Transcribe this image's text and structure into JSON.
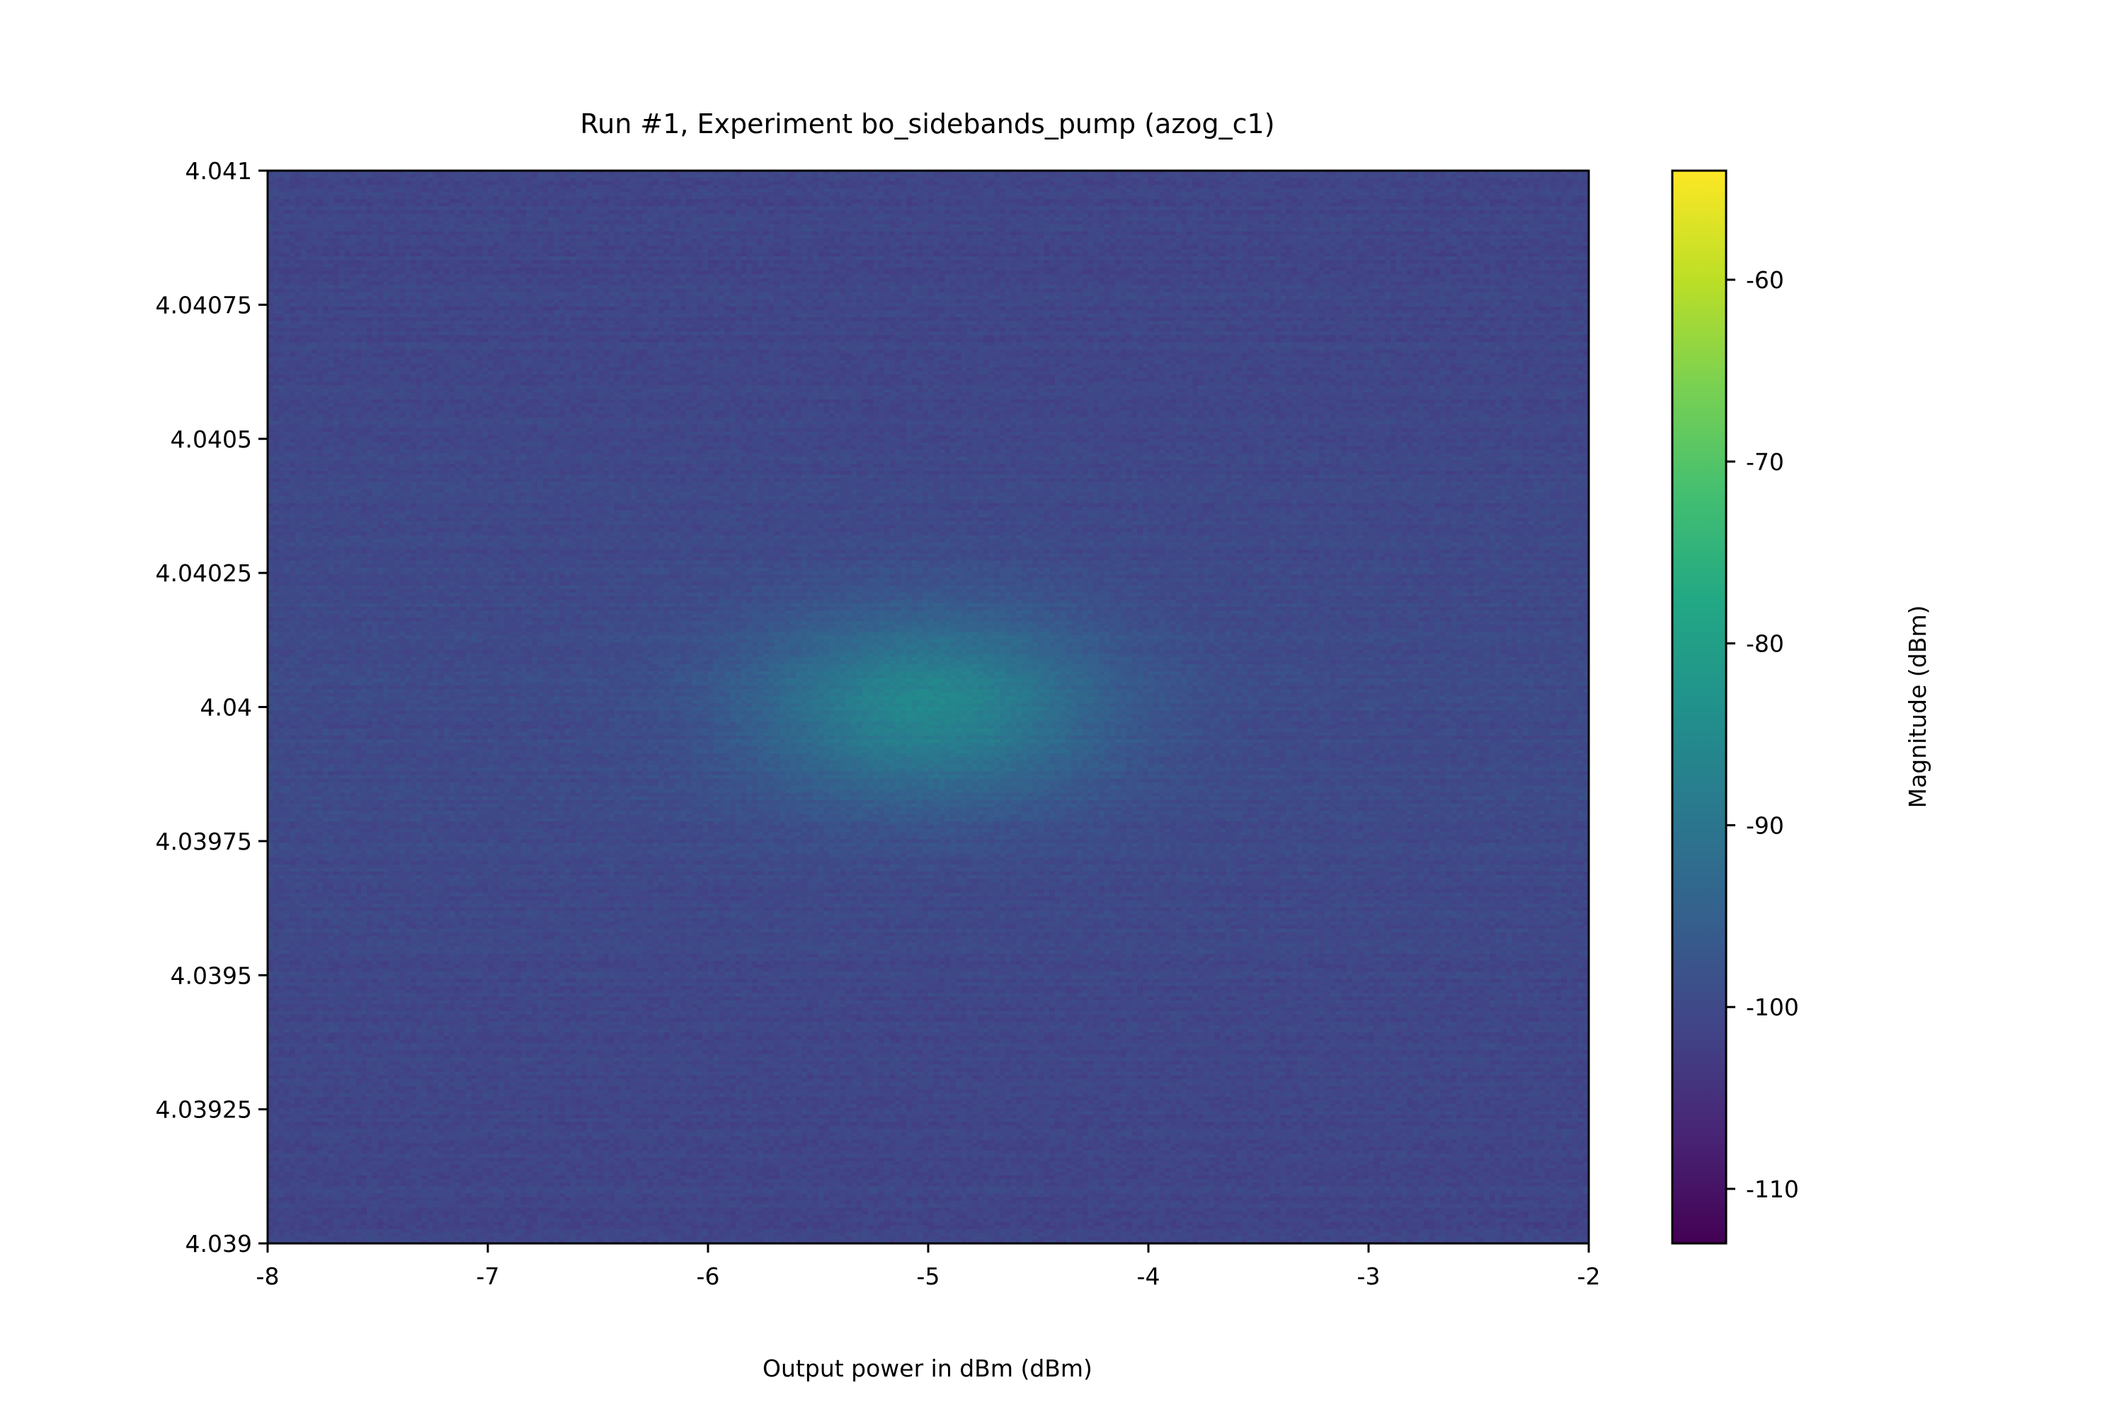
{
  "chart_data": {
    "type": "heatmap",
    "title": "Run #1, Experiment bo_sidebands_pump (azog_c1)",
    "xlabel": "Output power in dBm (dBm)",
    "ylabel": "",
    "xlim": [
      -8,
      -2
    ],
    "ylim": [
      4.039,
      4.041
    ],
    "x_ticks": [
      -8,
      -7,
      -6,
      -5,
      -4,
      -3,
      -2
    ],
    "x_tick_labels": [
      "-8",
      "-7",
      "-6",
      "-5",
      "-4",
      "-3",
      "-2"
    ],
    "y_ticks": [
      4.039,
      4.03925,
      4.0395,
      4.03975,
      4.04,
      4.04025,
      4.0405,
      4.04075,
      4.041
    ],
    "y_tick_labels": [
      "4.039",
      "4.03925",
      "4.0395",
      "4.03975",
      "4.04",
      "4.04025",
      "4.0405",
      "4.04075",
      "4.041"
    ],
    "colorbar": {
      "label": "Magnitude (dBm)",
      "colormap": "viridis",
      "range": [
        -113,
        -54
      ],
      "ticks": [
        -110,
        -100,
        -90,
        -80,
        -70,
        -60
      ],
      "tick_labels": [
        "-110",
        "-100",
        "-90",
        "-80",
        "-70",
        "-60"
      ]
    },
    "background_level": -101,
    "peak": {
      "x": -5.0,
      "y": 4.04,
      "value": -87,
      "x_width": 0.55,
      "y_width": 0.00012
    },
    "noise_amplitude": 1.2,
    "grid": false
  }
}
